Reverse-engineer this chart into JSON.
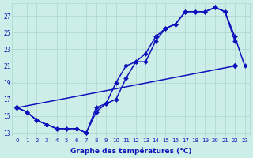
{
  "xlabel": "Graphe des températures (°C)",
  "hours_all": [
    0,
    1,
    2,
    3,
    4,
    5,
    6,
    7,
    8,
    9,
    10,
    11,
    12,
    13,
    14,
    15,
    16,
    17,
    18,
    19,
    20,
    21,
    22,
    23
  ],
  "line1": [
    16.0,
    15.5,
    14.5,
    14.0,
    13.5,
    13.5,
    13.5,
    13.0,
    16.0,
    16.5,
    19.0,
    21.0,
    21.5,
    22.5,
    24.5,
    25.5,
    26.0,
    27.5,
    27.5,
    27.5,
    28.0,
    27.5,
    24.5,
    21.0
  ],
  "line2": [
    16.0,
    15.5,
    14.5,
    14.0,
    13.5,
    13.5,
    13.5,
    13.0,
    15.5,
    16.5,
    17.0,
    19.5,
    21.5,
    21.5,
    24.0,
    25.5,
    26.0,
    27.5,
    27.5,
    27.5,
    28.0,
    27.5,
    24.0,
    null
  ],
  "line3_x": [
    0,
    22
  ],
  "line3_y": [
    16.0,
    21.0
  ],
  "yticks": [
    13,
    15,
    17,
    19,
    21,
    23,
    25,
    27
  ],
  "ylim": [
    12.5,
    28.5
  ],
  "xlim": [
    -0.5,
    23.5
  ],
  "bg_color": "#cceee8",
  "grid_color": "#aad4cc",
  "line_color": "#1111bb",
  "markersize": 3.0,
  "linewidth": 1.1
}
